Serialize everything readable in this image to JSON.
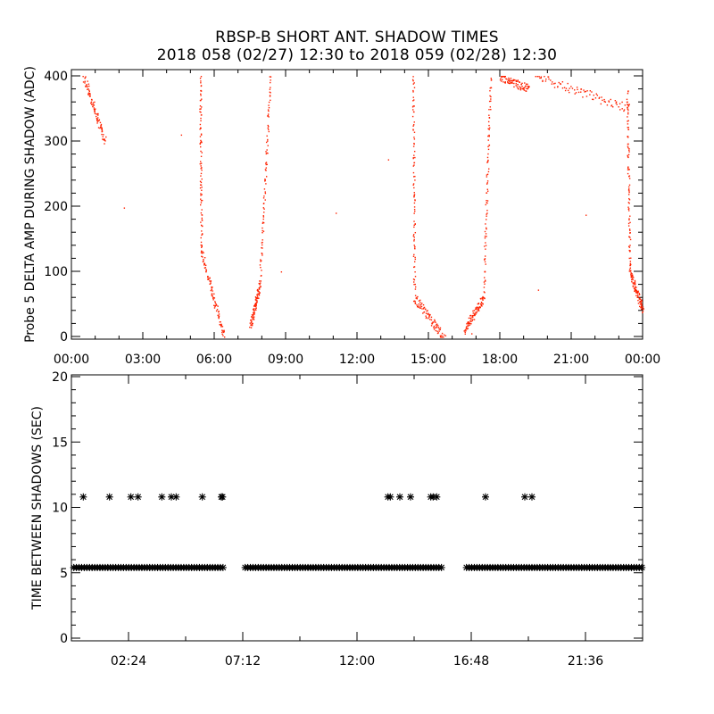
{
  "figure": {
    "title": "RBSP-B SHORT ANT. SHADOW TIMES",
    "subtitle": "2018 058 (02/27) 12:30 to 2018 059 (02/28) 12:30"
  },
  "colors": {
    "top_points": "#ff2200",
    "bottom_points": "#000000",
    "axes": "#000000"
  },
  "chart_data": [
    {
      "type": "scatter",
      "ylabel": "Probe 5 DELTA AMP DURING SHADOW (ADC)",
      "xlabel": "",
      "xlim_hours": [
        0,
        24
      ],
      "ylim": [
        0,
        400
      ],
      "x_tick_labels": [
        "00:00",
        "03:00",
        "06:00",
        "09:00",
        "12:00",
        "15:00",
        "18:00",
        "21:00",
        "00:00"
      ],
      "y_ticks": [
        0,
        100,
        200,
        300,
        400
      ],
      "segments": [
        {
          "x": [
            0.5,
            1.4
          ],
          "y": [
            400,
            300
          ]
        },
        {
          "x": [
            5.4,
            5.45
          ],
          "y": [
            400,
            130
          ]
        },
        {
          "x": [
            5.45,
            6.4
          ],
          "y": [
            130,
            0
          ]
        },
        {
          "x": [
            7.5,
            7.9
          ],
          "y": [
            15,
            80
          ]
        },
        {
          "x": [
            7.9,
            8.35
          ],
          "y": [
            80,
            400
          ]
        },
        {
          "x": [
            14.35,
            14.4
          ],
          "y": [
            400,
            60
          ]
        },
        {
          "x": [
            14.4,
            15.6
          ],
          "y": [
            60,
            0
          ]
        },
        {
          "x": [
            16.5,
            17.3
          ],
          "y": [
            10,
            60
          ]
        },
        {
          "x": [
            17.3,
            17.6
          ],
          "y": [
            60,
            400
          ]
        },
        {
          "x": [
            18.0,
            19.2
          ],
          "y": [
            400,
            380
          ]
        },
        {
          "x": [
            19.5,
            23.4
          ],
          "y": [
            400,
            350
          ]
        },
        {
          "x": [
            23.35,
            23.45
          ],
          "y": [
            380,
            100
          ]
        },
        {
          "x": [
            23.45,
            24.0
          ],
          "y": [
            100,
            40
          ]
        }
      ],
      "outliers": [
        {
          "x": 2.2,
          "y": 198
        },
        {
          "x": 4.6,
          "y": 310
        },
        {
          "x": 8.8,
          "y": 100
        },
        {
          "x": 11.1,
          "y": 190
        },
        {
          "x": 13.3,
          "y": 272
        },
        {
          "x": 19.6,
          "y": 72
        },
        {
          "x": 21.6,
          "y": 187
        },
        {
          "x": 15.7,
          "y": 2
        },
        {
          "x": 16.8,
          "y": 5
        }
      ]
    },
    {
      "type": "scatter",
      "ylabel": "TIME BETWEEN SHADOWS (SEC)",
      "xlabel": "",
      "xlim_hours": [
        0,
        24
      ],
      "ylim": [
        0,
        20
      ],
      "x_ticks": [
        "02:24",
        "07:12",
        "12:00",
        "16:48",
        "21:36"
      ],
      "y_ticks": [
        0,
        5,
        10,
        15,
        20
      ],
      "baseline_value": 5.4,
      "baseline_ranges": [
        [
          0.1,
          6.4
        ],
        [
          7.3,
          15.6
        ],
        [
          16.6,
          24.0
        ]
      ],
      "upper_points": {
        "y": 10.8,
        "x": [
          0.5,
          1.6,
          2.5,
          2.8,
          3.8,
          4.2,
          4.4,
          5.5,
          6.3,
          6.35,
          13.3,
          13.4,
          13.8,
          14.25,
          15.1,
          15.2,
          15.35,
          17.4,
          19.05,
          19.35
        ]
      }
    }
  ]
}
